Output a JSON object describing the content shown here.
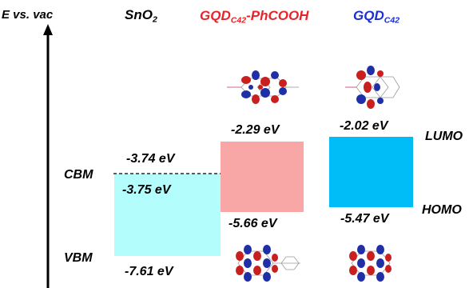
{
  "axis": {
    "label": "E vs. vac"
  },
  "columns": {
    "sno2": {
      "name": "SnO",
      "subscript": "2",
      "color": "#000000"
    },
    "gqd_phcooh": {
      "name": "GQD",
      "subscript": "C42",
      "suffix": "-PhCOOH",
      "color": "#e8242a"
    },
    "gqd": {
      "name": "GQD",
      "subscript": "C42",
      "color": "#1a2fd6"
    }
  },
  "energies": {
    "sno2_cbm_top": "-3.74 eV",
    "sno2_cbm": "-3.75 eV",
    "sno2_vbm": "-7.61 eV",
    "phcooh_lumo": "-2.29 eV",
    "phcooh_homo": "-5.66 eV",
    "gqd_lumo": "-2.02 eV",
    "gqd_homo": "-5.47 eV"
  },
  "band_labels": {
    "cbm": "CBM",
    "vbm": "VBM",
    "lumo": "LUMO",
    "homo": "HOMO"
  },
  "colors": {
    "sno2_band": "#b3fdfd",
    "phcooh_band": "#f9a6a6",
    "gqd_band": "#00bdf7",
    "orbital_red": "#c91f1f",
    "orbital_blue": "#1f2fa8"
  }
}
